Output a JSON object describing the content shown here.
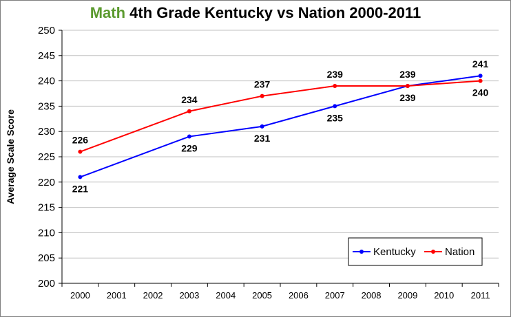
{
  "title": {
    "accent": "Math",
    "rest": "4th Grade Kentucky vs Nation 2000-2011"
  },
  "chart_data": {
    "type": "line",
    "title": "Math 4th Grade Kentucky vs Nation 2000-2011",
    "xlabel": "",
    "ylabel": "Average Scale Score",
    "categories": [
      "2000",
      "2001",
      "2002",
      "2003",
      "2004",
      "2005",
      "2006",
      "2007",
      "2008",
      "2009",
      "2010",
      "2011"
    ],
    "ylim": [
      200,
      250
    ],
    "yticks": [
      200,
      205,
      210,
      215,
      220,
      225,
      230,
      235,
      240,
      245,
      250
    ],
    "grid": true,
    "legend": "bottom-right",
    "series": [
      {
        "name": "Kentucky",
        "color": "#0000ff",
        "points": [
          {
            "x": "2000",
            "y": 221
          },
          {
            "x": "2003",
            "y": 229
          },
          {
            "x": "2005",
            "y": 231
          },
          {
            "x": "2007",
            "y": 235
          },
          {
            "x": "2009",
            "y": 239
          },
          {
            "x": "2011",
            "y": 241
          }
        ],
        "label_position": [
          "below",
          "below",
          "below",
          "below",
          "below",
          "above"
        ]
      },
      {
        "name": "Nation",
        "color": "#ff0000",
        "points": [
          {
            "x": "2000",
            "y": 226
          },
          {
            "x": "2003",
            "y": 234
          },
          {
            "x": "2005",
            "y": 237
          },
          {
            "x": "2007",
            "y": 239
          },
          {
            "x": "2009",
            "y": 239
          },
          {
            "x": "2011",
            "y": 240
          }
        ],
        "label_position": [
          "above",
          "above",
          "above",
          "above",
          "above",
          "below"
        ]
      }
    ]
  }
}
